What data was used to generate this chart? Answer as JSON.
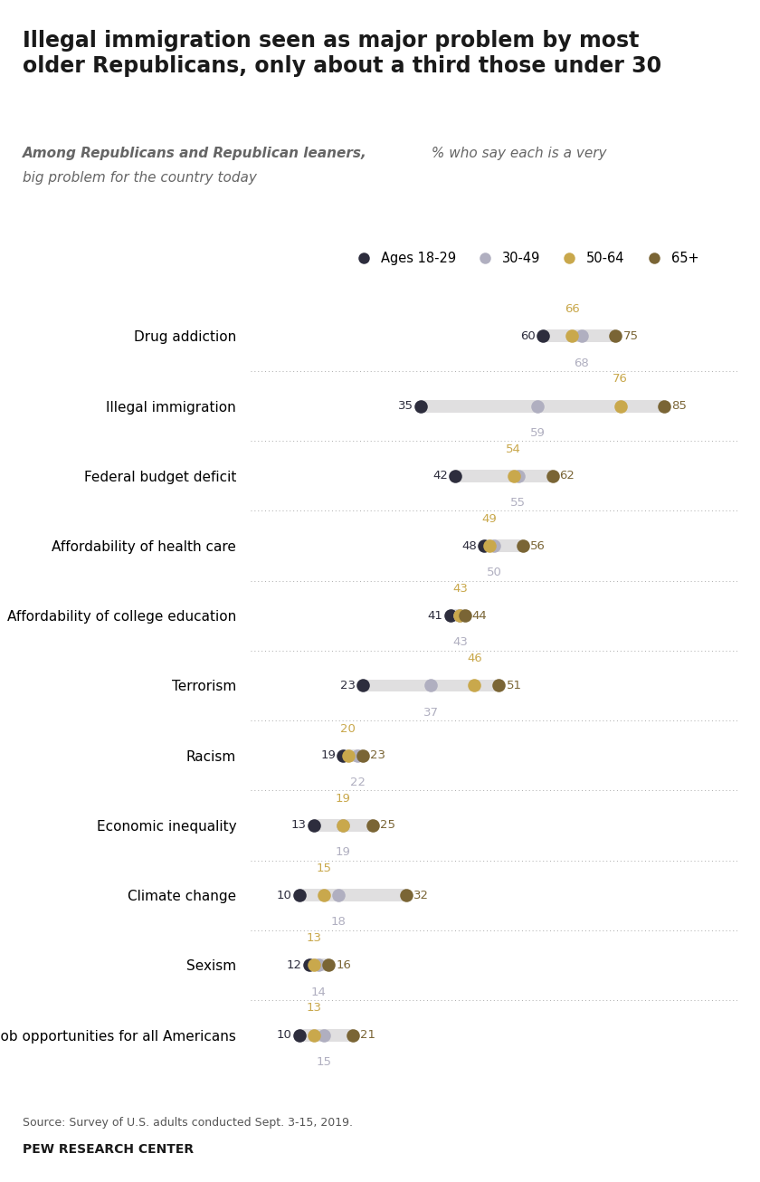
{
  "title": "Illegal immigration seen as major problem by most\nolder Republicans, only about a third those under 30",
  "subtitle_bold": "Among Republicans and Republican leaners,",
  "subtitle_regular": " % who say each is a very big problem for the country today",
  "legend_labels": [
    "Ages 18-29",
    "30-49",
    "50-64",
    "65+"
  ],
  "legend_colors": [
    "#2d2d3d",
    "#b0afc0",
    "#c9a84c",
    "#7a6535"
  ],
  "dot_colors": [
    "#2d2d3d",
    "#b0afc0",
    "#c9a84c",
    "#7a6535"
  ],
  "categories": [
    "Drug addiction",
    "Illegal immigration",
    "Federal budget deficit",
    "Affordability of health care",
    "Affordability of college education",
    "Terrorism",
    "Racism",
    "Economic inequality",
    "Climate change",
    "Sexism",
    "Job opportunities for all Americans"
  ],
  "values": [
    [
      60,
      68,
      66,
      75
    ],
    [
      35,
      59,
      76,
      85
    ],
    [
      42,
      55,
      54,
      62
    ],
    [
      48,
      50,
      49,
      56
    ],
    [
      41,
      43,
      43,
      44
    ],
    [
      23,
      37,
      46,
      51
    ],
    [
      19,
      22,
      20,
      23
    ],
    [
      13,
      19,
      19,
      25
    ],
    [
      10,
      18,
      15,
      32
    ],
    [
      12,
      14,
      13,
      16
    ],
    [
      10,
      15,
      13,
      21
    ]
  ],
  "source": "Source: Survey of U.S. adults conducted Sept. 3-15, 2019.",
  "credit": "PEW RESEARCH CENTER",
  "bg_color": "#ffffff",
  "bar_color": "#e0dfe0",
  "dot_size": 110,
  "label_color_18_29": "#2d2d3d",
  "label_color_30_49": "#b0afc0",
  "label_color_50_64": "#c9a84c",
  "label_color_65plus": "#7a6535"
}
